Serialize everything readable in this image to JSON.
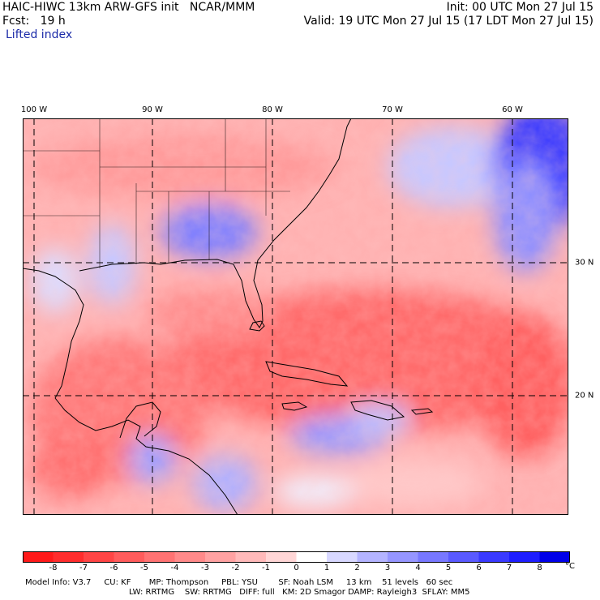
{
  "header": {
    "title": "HAIC-HIWC 13km ARW-GFS init   NCAR/MMM",
    "init": "Init: 00 UTC Mon 27 Jul 15",
    "fcst": "Fcst:   19 h",
    "valid": "Valid: 19 UTC Mon 27 Jul 15 (17 LDT Mon 27 Jul 15)",
    "field": "Lifted index"
  },
  "map": {
    "lon_labels": [
      "100 W",
      "90 W",
      "80 W",
      "70 W",
      "60 W"
    ],
    "lat_labels": [
      "30 N",
      "20 N"
    ]
  },
  "colorbar": {
    "labels": [
      "-8",
      "-7",
      "-6",
      "-5",
      "-4",
      "-3",
      "-2",
      "-1",
      "0",
      "1",
      "2",
      "3",
      "4",
      "5",
      "6",
      "7",
      "8"
    ],
    "unit": "°C",
    "colors": [
      "#ff1a1a",
      "#ff2d2d",
      "#ff4545",
      "#ff5c5c",
      "#ff7373",
      "#ff8a8a",
      "#ffa2a2",
      "#ffbaba",
      "#ffd6d6",
      "#ffffff",
      "#d8d8ff",
      "#b4b4ff",
      "#9696ff",
      "#7878ff",
      "#5a5aff",
      "#3a3aff",
      "#1e1eff",
      "#0000e8"
    ]
  },
  "footer": {
    "line1": "Model Info: V3.7     CU: KF       MP: Thompson     PBL: YSU        SF: Noah LSM     13 km    51 levels   60 sec",
    "line2": "LW: RRTMG    SW: RRTMG   DIFF: full   KM: 2D Smagor DAMP: Rayleigh3  SFLAY: MM5"
  }
}
